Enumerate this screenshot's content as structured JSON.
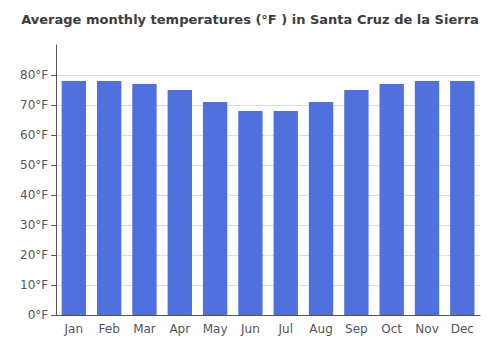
{
  "chart_data": {
    "type": "bar",
    "title": "Average monthly temperatures (°F ) in Santa Cruz de la Sierra",
    "categories": [
      "Jan",
      "Feb",
      "Mar",
      "Apr",
      "May",
      "Jun",
      "Jul",
      "Aug",
      "Sep",
      "Oct",
      "Nov",
      "Dec"
    ],
    "values": [
      78,
      78,
      77,
      75,
      71,
      68,
      68,
      71,
      75,
      77,
      78,
      78
    ],
    "ylim": [
      0,
      90
    ],
    "yticks": [
      {
        "value": 0,
        "label": "0°F"
      },
      {
        "value": 10,
        "label": "10°F"
      },
      {
        "value": 20,
        "label": "20°F"
      },
      {
        "value": 30,
        "label": "30°F"
      },
      {
        "value": 40,
        "label": "40°F"
      },
      {
        "value": 50,
        "label": "50°F"
      },
      {
        "value": 60,
        "label": "60°F"
      },
      {
        "value": 70,
        "label": "70°F"
      },
      {
        "value": 80,
        "label": "80°F"
      }
    ],
    "grid": true
  }
}
